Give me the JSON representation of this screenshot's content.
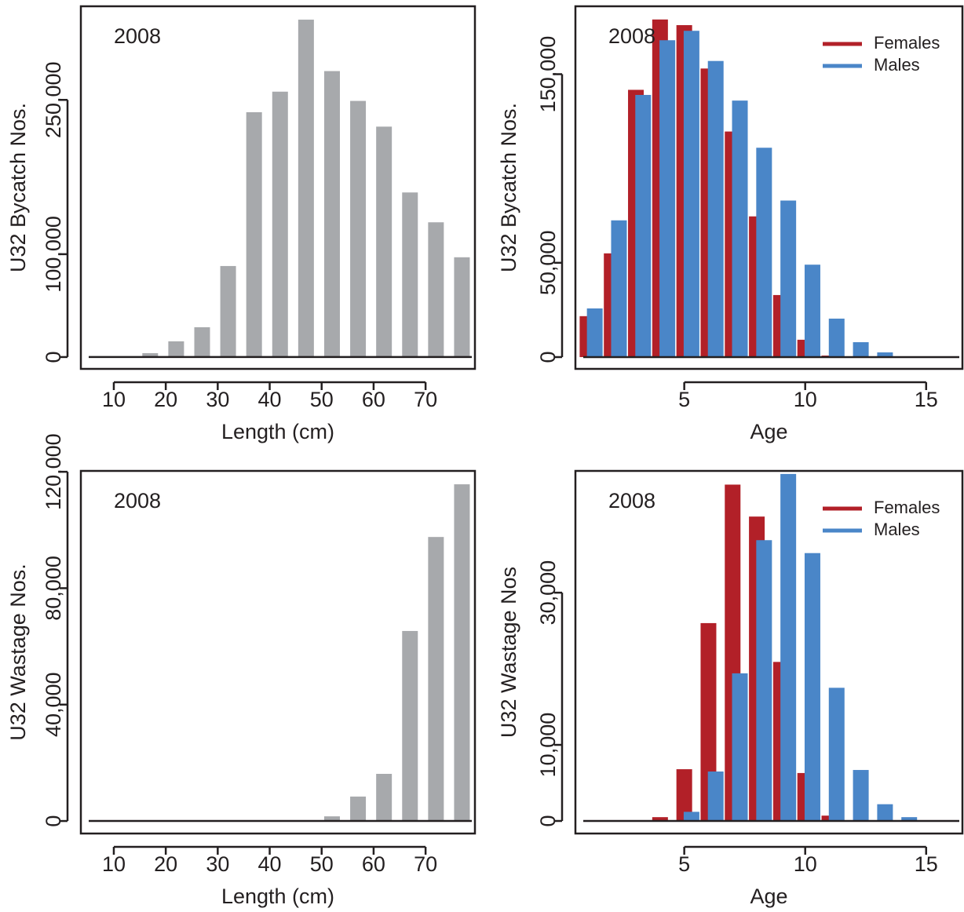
{
  "chart_data": [
    {
      "type": "bar",
      "annotation": "2008",
      "xlabel": "Length (cm)",
      "ylabel": "U32 Bycatch Nos.",
      "x": [
        7,
        12,
        17,
        22,
        27,
        32,
        37,
        42,
        47,
        52,
        57,
        62,
        67,
        72,
        77
      ],
      "values": [
        0,
        0,
        3800,
        15300,
        29000,
        88500,
        238000,
        258000,
        328000,
        278000,
        249000,
        224000,
        160000,
        131000,
        97000
      ],
      "color": "#a7a9ac",
      "xlim": [
        3.66,
        79.5
      ],
      "ylim": [
        -11500,
        341000
      ],
      "xticks": [
        10,
        20,
        30,
        40,
        50,
        60,
        70
      ],
      "yticks": [
        0,
        {
          "value": 100000,
          "label": "100,000"
        },
        {
          "value": 250000,
          "label": "250,000"
        }
      ]
    },
    {
      "type": "bar",
      "annotation": "2008",
      "xlabel": "Age",
      "ylabel": "U32 Bycatch Nos.",
      "legend": "topright",
      "x": [
        1,
        2,
        3,
        4,
        5,
        6,
        7,
        8,
        9,
        10,
        11,
        12,
        13,
        14,
        15
      ],
      "series": [
        {
          "name": "Females",
          "color": "#b22028",
          "values": [
            21700,
            55000,
            141700,
            179000,
            176000,
            153000,
            119600,
            74600,
            32900,
            9200,
            800,
            0,
            0,
            0,
            0
          ]
        },
        {
          "name": "Males",
          "color": "#4a86c8",
          "values": [
            25800,
            72500,
            139000,
            168000,
            173000,
            157000,
            136000,
            111000,
            83000,
            49000,
            20400,
            7900,
            2500,
            0,
            0
          ]
        }
      ],
      "xlim": [
        0.5,
        16.5
      ],
      "ylim": [
        -6250,
        186000
      ],
      "xticks": [
        5,
        10,
        15
      ],
      "yticks": [
        0,
        {
          "value": 50000,
          "label": "50,000"
        },
        {
          "value": 150000,
          "label": "150,000"
        }
      ]
    },
    {
      "type": "bar",
      "annotation": "2008",
      "xlabel": "Length (cm)",
      "ylabel": "U32 Wastage Nos.",
      "x": [
        7,
        12,
        17,
        22,
        27,
        32,
        37,
        42,
        47,
        52,
        57,
        62,
        67,
        72,
        77
      ],
      "values": [
        0,
        0,
        0,
        0,
        0,
        0,
        0,
        0,
        0,
        1600,
        8400,
        16200,
        65300,
        97600,
        115700
      ],
      "color": "#a7a9ac",
      "xlim": [
        3.66,
        79.5
      ],
      "ylim": [
        -4300,
        120300
      ],
      "xticks": [
        10,
        20,
        30,
        40,
        50,
        60,
        70
      ],
      "yticks": [
        0,
        {
          "value": 40000,
          "label": "40,000"
        },
        {
          "value": 80000,
          "label": "80,000"
        },
        {
          "value": 120000,
          "label": "120,000"
        }
      ]
    },
    {
      "type": "bar",
      "annotation": "2008",
      "xlabel": "Age",
      "ylabel": "U32 Wastage Nos",
      "legend": "topright",
      "x": [
        1,
        2,
        3,
        4,
        5,
        6,
        7,
        8,
        9,
        10,
        11,
        12,
        13,
        14,
        15
      ],
      "series": [
        {
          "name": "Females",
          "color": "#b22028",
          "values": [
            0,
            0,
            0,
            500,
            6800,
            26000,
            44200,
            40000,
            20900,
            6300,
            700,
            0,
            0,
            0,
            0
          ]
        },
        {
          "name": "Males",
          "color": "#4a86c8",
          "values": [
            0,
            0,
            0,
            0,
            1200,
            6500,
            19400,
            36900,
            45600,
            35200,
            17500,
            6700,
            2200,
            500,
            0
          ]
        }
      ],
      "xlim": [
        0.5,
        16.5
      ],
      "ylim": [
        -1650,
        46000
      ],
      "xticks": [
        5,
        10,
        15
      ],
      "yticks": [
        0,
        {
          "value": 10000,
          "label": "10,000"
        },
        {
          "value": 30000,
          "label": "30,000"
        }
      ]
    }
  ]
}
